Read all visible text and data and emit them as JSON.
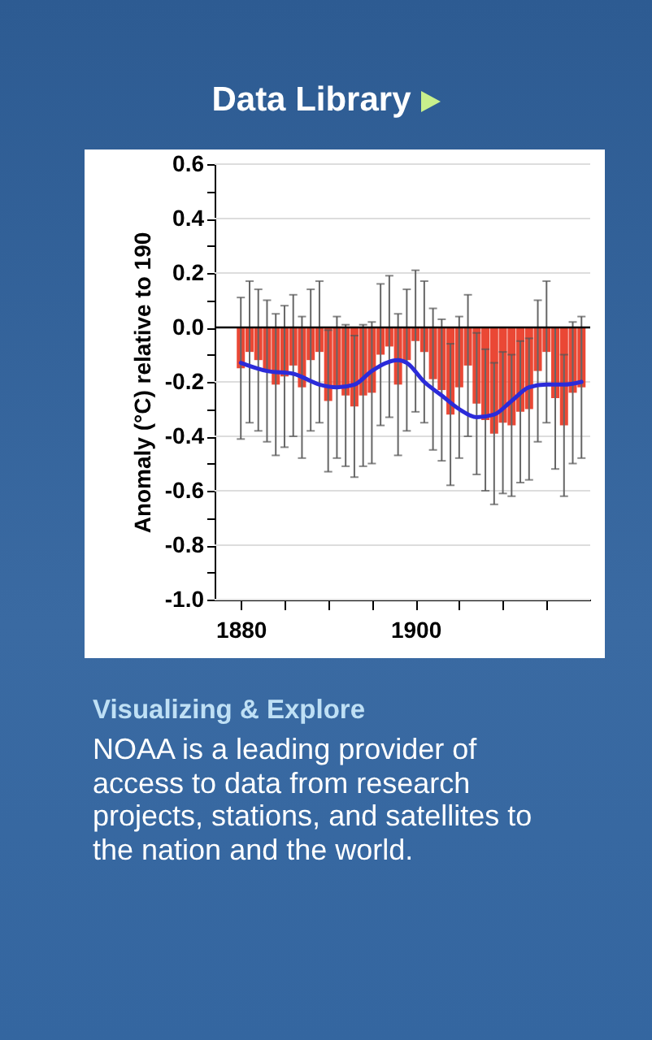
{
  "chart_data": {
    "type": "bar",
    "title": "Data Library",
    "ylabel": "Anomaly (°C) relative to 190",
    "annotations": [
      "Visualizing & Explore",
      "NOAA is a leading provider of access to data from research projects, stations, and satellites to the nation and the world."
    ],
    "x": [
      1880,
      1881,
      1882,
      1883,
      1884,
      1885,
      1886,
      1887,
      1888,
      1889,
      1890,
      1891,
      1892,
      1893,
      1894,
      1895,
      1896,
      1897,
      1898,
      1899,
      1900,
      1901,
      1902,
      1903,
      1904,
      1905,
      1906,
      1907,
      1908,
      1909,
      1910,
      1911,
      1912,
      1913,
      1914,
      1915,
      1916,
      1917,
      1918,
      1919
    ],
    "series": [
      {
        "color": "#e8341f",
        "values": [
          -0.15,
          -0.09,
          -0.12,
          -0.16,
          -0.21,
          -0.18,
          -0.14,
          -0.22,
          -0.12,
          -0.09,
          -0.27,
          -0.22,
          -0.25,
          -0.29,
          -0.25,
          -0.24,
          -0.1,
          -0.07,
          -0.21,
          -0.12,
          -0.05,
          -0.09,
          -0.19,
          -0.23,
          -0.32,
          -0.22,
          -0.14,
          -0.28,
          -0.34,
          -0.39,
          -0.35,
          -0.36,
          -0.31,
          -0.3,
          -0.16,
          -0.09,
          -0.26,
          -0.36,
          -0.24,
          -0.22
        ],
        "errors": [
          0.26,
          0.26,
          0.26,
          0.26,
          0.26,
          0.26,
          0.26,
          0.26,
          0.26,
          0.26,
          0.26,
          0.26,
          0.26,
          0.26,
          0.26,
          0.26,
          0.26,
          0.26,
          0.26,
          0.26,
          0.26,
          0.26,
          0.26,
          0.26,
          0.26,
          0.26,
          0.26,
          0.26,
          0.26,
          0.26,
          0.26,
          0.26,
          0.26,
          0.26,
          0.26,
          0.26,
          0.26,
          0.26,
          0.26,
          0.26
        ]
      },
      {
        "type": "line",
        "color": "#2b2bd9",
        "x": [
          1880,
          1883,
          1886,
          1889,
          1891,
          1893,
          1895,
          1898,
          1899,
          1901,
          1903,
          1905,
          1907,
          1909,
          1911,
          1913,
          1915,
          1917,
          1919
        ],
        "values": [
          -0.13,
          -0.16,
          -0.17,
          -0.21,
          -0.22,
          -0.21,
          -0.16,
          -0.12,
          -0.13,
          -0.2,
          -0.25,
          -0.3,
          -0.33,
          -0.32,
          -0.27,
          -0.22,
          -0.21,
          -0.21,
          -0.2
        ]
      }
    ],
    "xlim": [
      1877,
      1920
    ],
    "xticks": [
      1880,
      {
        "value": 1885,
        "label": null
      },
      1900,
      {
        "value": 1890,
        "label": null
      },
      {
        "value": 1895,
        "label": null
      },
      {
        "value": 1905,
        "label": null
      },
      {
        "value": 1910,
        "label": null
      },
      {
        "value": 1915,
        "label": null
      }
    ],
    "ylim": [
      -1.0,
      0.6
    ],
    "yticks": [
      0.6,
      {
        "value": 0.5,
        "label": null
      },
      0.4,
      {
        "value": 0.3,
        "label": null
      },
      0.2,
      {
        "value": 0.1,
        "label": null
      },
      {
        "value": 0,
        "label": "0.0"
      },
      {
        "value": -0.1,
        "label": null
      },
      -0.2,
      {
        "value": -0.3,
        "label": null
      },
      -0.4,
      {
        "value": -0.5,
        "label": null
      },
      -0.6,
      {
        "value": -0.7,
        "label": null
      },
      -0.8,
      {
        "value": -0.9,
        "label": null
      },
      {
        "value": -1.0,
        "label": "-1.0"
      }
    ],
    "grid": "y",
    "ref_lines": [
      {
        "axis": "y",
        "value": 0,
        "color": "#000000"
      }
    ]
  }
}
